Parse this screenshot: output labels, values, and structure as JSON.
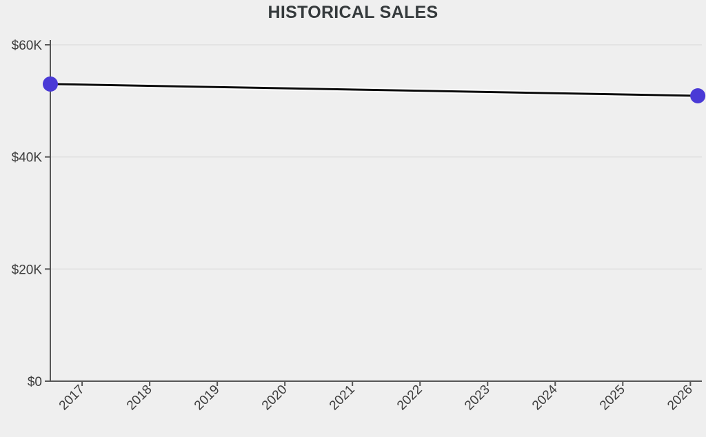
{
  "page": {
    "background": "#efefef"
  },
  "chart_data": {
    "type": "line",
    "title": "HISTORICAL SALES",
    "series": [
      {
        "name": "Historical Sales",
        "x": [
          2016.53,
          2026.11
        ],
        "y": [
          53000,
          50900
        ],
        "line_color": "#0a0a0a",
        "line_halo_color": "#fdfdfd",
        "point_color": "#4a3ad6",
        "point_radius": 11
      }
    ],
    "xlim": [
      2016.53,
      2026.17
    ],
    "ylim": [
      0,
      60000
    ],
    "x_ticks": [
      2017,
      2018,
      2019,
      2020,
      2021,
      2022,
      2023,
      2024,
      2025,
      2026
    ],
    "x_tick_labels": [
      "2017",
      "2018",
      "2019",
      "2020",
      "2021",
      "2022",
      "2023",
      "2024",
      "2025",
      "2026"
    ],
    "y_ticks": [
      0,
      20000,
      40000,
      60000
    ],
    "y_tick_labels": [
      "$0",
      "$20K",
      "$40K",
      "$60K"
    ],
    "x_label_rotation_deg": -45,
    "grid": "horizontal",
    "legend": "none",
    "axis_color": "#565656",
    "grid_color": "#e3e3e3",
    "label_color": "#3d3d3d",
    "title_color": "#353a3c"
  }
}
